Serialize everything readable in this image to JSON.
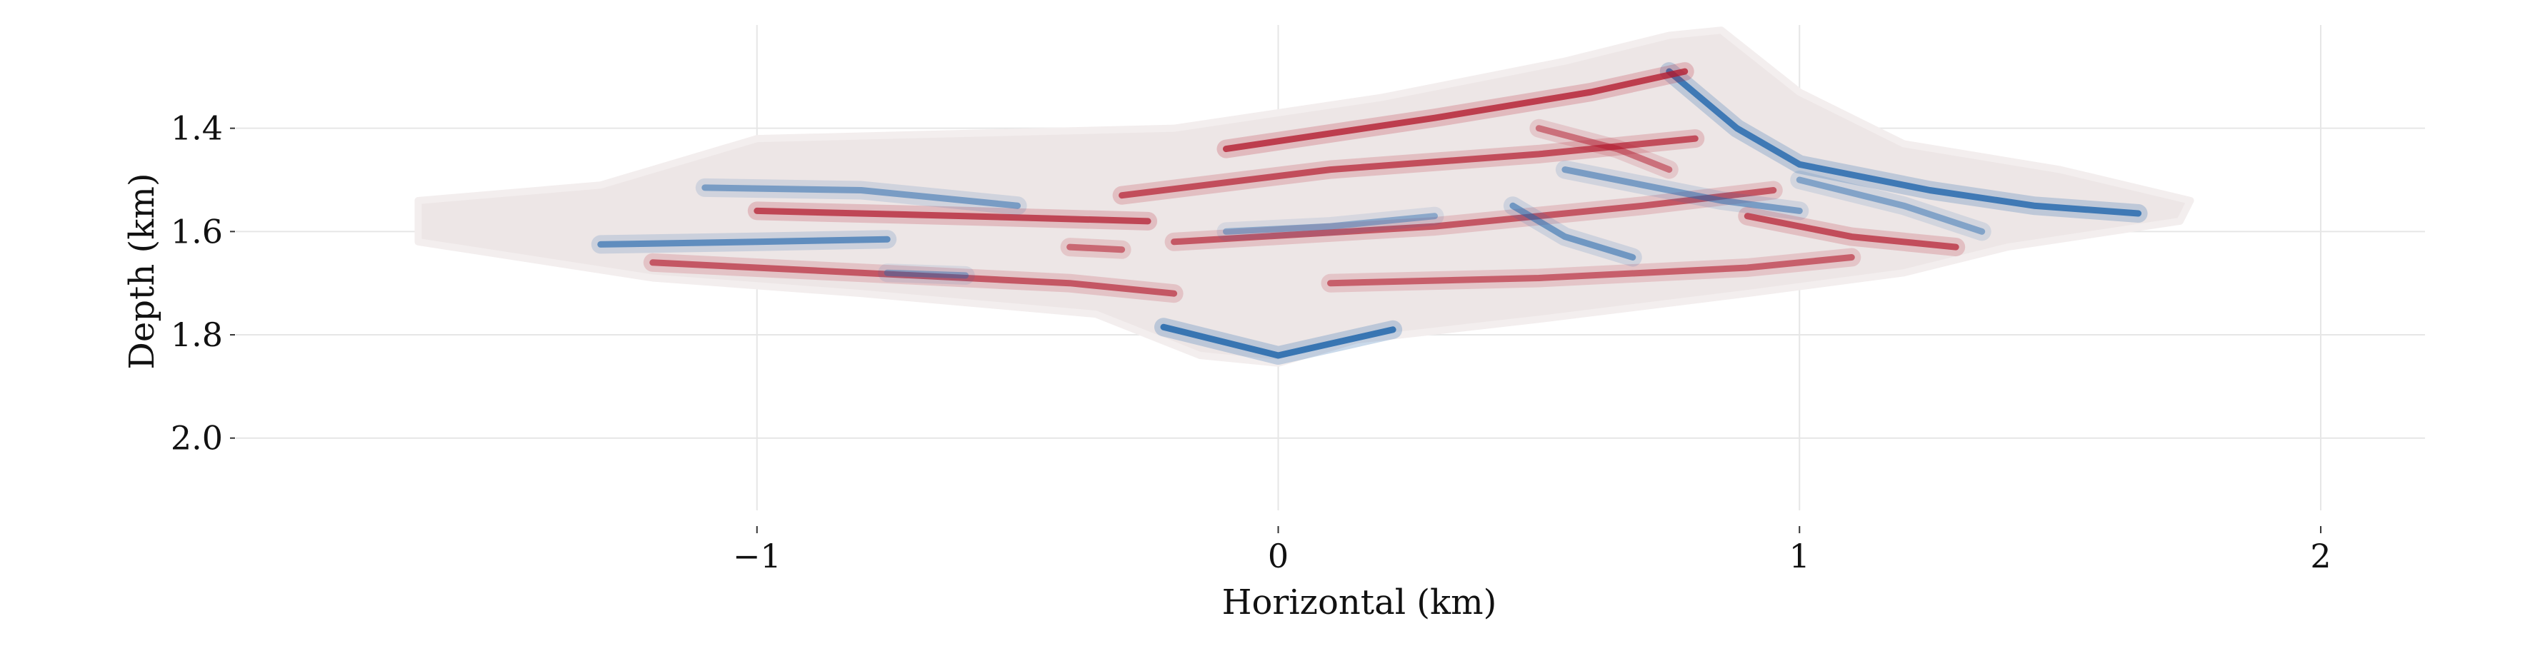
{
  "chart_data": {
    "type": "heatmap",
    "title": "",
    "xlabel": "Horizontal (km)",
    "ylabel": "Depth (km)",
    "xlim": [
      -2.0,
      2.2
    ],
    "ylim": [
      2.14,
      1.2
    ],
    "xticks": [
      {
        "value": -1,
        "label": "−1"
      },
      {
        "value": 0,
        "label": "0"
      },
      {
        "value": 1,
        "label": "1"
      },
      {
        "value": 2,
        "label": "2"
      }
    ],
    "yticks": [
      {
        "value": 1.4,
        "label": "1.4"
      },
      {
        "value": 1.6,
        "label": "1.6"
      },
      {
        "value": 1.8,
        "label": "1.8"
      },
      {
        "value": 2.0,
        "label": "2.0"
      }
    ],
    "grid": true,
    "colormap": "diverging red-white-blue",
    "colors": {
      "positive": "#b2182b",
      "negative": "#2166ac",
      "mask": "#ede6e6",
      "grid": "#e6e6e6"
    },
    "support_outline": [
      [
        -1.65,
        1.54
      ],
      [
        -1.3,
        1.51
      ],
      [
        -1.0,
        1.42
      ],
      [
        -0.6,
        1.41
      ],
      [
        -0.2,
        1.4
      ],
      [
        0.2,
        1.34
      ],
      [
        0.55,
        1.27
      ],
      [
        0.75,
        1.22
      ],
      [
        0.85,
        1.21
      ],
      [
        1.0,
        1.33
      ],
      [
        1.2,
        1.43
      ],
      [
        1.5,
        1.48
      ],
      [
        1.75,
        1.54
      ],
      [
        1.73,
        1.58
      ],
      [
        1.4,
        1.63
      ],
      [
        1.2,
        1.68
      ],
      [
        0.9,
        1.72
      ],
      [
        0.5,
        1.77
      ],
      [
        0.15,
        1.81
      ],
      [
        0.0,
        1.855
      ],
      [
        -0.15,
        1.84
      ],
      [
        -0.35,
        1.76
      ],
      [
        -0.8,
        1.72
      ],
      [
        -1.2,
        1.69
      ],
      [
        -1.65,
        1.62
      ]
    ],
    "reflectors": [
      {
        "polarity": "negative",
        "amplitude": 0.95,
        "points": [
          [
            -0.22,
            1.785
          ],
          [
            0.0,
            1.84
          ],
          [
            0.22,
            1.79
          ]
        ]
      },
      {
        "polarity": "negative",
        "amplitude": 0.9,
        "points": [
          [
            0.75,
            1.29
          ],
          [
            0.88,
            1.4
          ],
          [
            1.0,
            1.47
          ],
          [
            1.25,
            1.52
          ],
          [
            1.45,
            1.55
          ],
          [
            1.65,
            1.565
          ]
        ]
      },
      {
        "polarity": "positive",
        "amplitude": 0.85,
        "points": [
          [
            -0.1,
            1.44
          ],
          [
            0.3,
            1.38
          ],
          [
            0.6,
            1.33
          ],
          [
            0.78,
            1.29
          ]
        ]
      },
      {
        "polarity": "positive",
        "amplitude": 0.75,
        "points": [
          [
            -0.3,
            1.53
          ],
          [
            0.1,
            1.48
          ],
          [
            0.5,
            1.45
          ],
          [
            0.8,
            1.42
          ]
        ]
      },
      {
        "polarity": "positive",
        "amplitude": 0.7,
        "points": [
          [
            -0.2,
            1.62
          ],
          [
            0.3,
            1.59
          ],
          [
            0.7,
            1.55
          ],
          [
            0.95,
            1.52
          ]
        ]
      },
      {
        "polarity": "positive",
        "amplitude": 0.8,
        "points": [
          [
            -1.0,
            1.56
          ],
          [
            -0.6,
            1.57
          ],
          [
            -0.25,
            1.58
          ]
        ]
      },
      {
        "polarity": "negative",
        "amplitude": 0.7,
        "points": [
          [
            -1.3,
            1.625
          ],
          [
            -1.0,
            1.62
          ],
          [
            -0.75,
            1.615
          ]
        ]
      },
      {
        "polarity": "negative",
        "amplitude": 0.55,
        "points": [
          [
            -1.1,
            1.515
          ],
          [
            -0.8,
            1.52
          ],
          [
            -0.5,
            1.55
          ]
        ]
      },
      {
        "polarity": "positive",
        "amplitude": 0.7,
        "points": [
          [
            -1.2,
            1.66
          ],
          [
            -0.8,
            1.68
          ],
          [
            -0.4,
            1.7
          ],
          [
            -0.2,
            1.72
          ]
        ]
      },
      {
        "polarity": "positive",
        "amplitude": 0.65,
        "points": [
          [
            0.1,
            1.7
          ],
          [
            0.5,
            1.69
          ],
          [
            0.9,
            1.67
          ],
          [
            1.1,
            1.65
          ]
        ]
      },
      {
        "polarity": "negative",
        "amplitude": 0.6,
        "points": [
          [
            0.45,
            1.55
          ],
          [
            0.55,
            1.61
          ],
          [
            0.68,
            1.65
          ]
        ]
      },
      {
        "polarity": "negative",
        "amplitude": 0.55,
        "points": [
          [
            0.55,
            1.48
          ],
          [
            0.7,
            1.51
          ],
          [
            0.85,
            1.54
          ],
          [
            1.0,
            1.56
          ]
        ]
      },
      {
        "polarity": "positive",
        "amplitude": 0.75,
        "points": [
          [
            0.9,
            1.57
          ],
          [
            1.1,
            1.61
          ],
          [
            1.3,
            1.63
          ]
        ]
      },
      {
        "polarity": "negative",
        "amplitude": 0.5,
        "points": [
          [
            1.0,
            1.5
          ],
          [
            1.2,
            1.55
          ],
          [
            1.35,
            1.6
          ]
        ]
      },
      {
        "polarity": "positive",
        "amplitude": 0.6,
        "points": [
          [
            -0.4,
            1.63
          ],
          [
            -0.3,
            1.635
          ]
        ]
      },
      {
        "polarity": "negative",
        "amplitude": 0.45,
        "points": [
          [
            -0.1,
            1.6
          ],
          [
            0.1,
            1.59
          ],
          [
            0.3,
            1.57
          ]
        ]
      },
      {
        "polarity": "positive",
        "amplitude": 0.55,
        "points": [
          [
            0.5,
            1.4
          ],
          [
            0.65,
            1.44
          ],
          [
            0.75,
            1.48
          ]
        ]
      },
      {
        "polarity": "negative",
        "amplitude": 0.45,
        "points": [
          [
            -0.75,
            1.68
          ],
          [
            -0.6,
            1.685
          ]
        ]
      }
    ]
  }
}
